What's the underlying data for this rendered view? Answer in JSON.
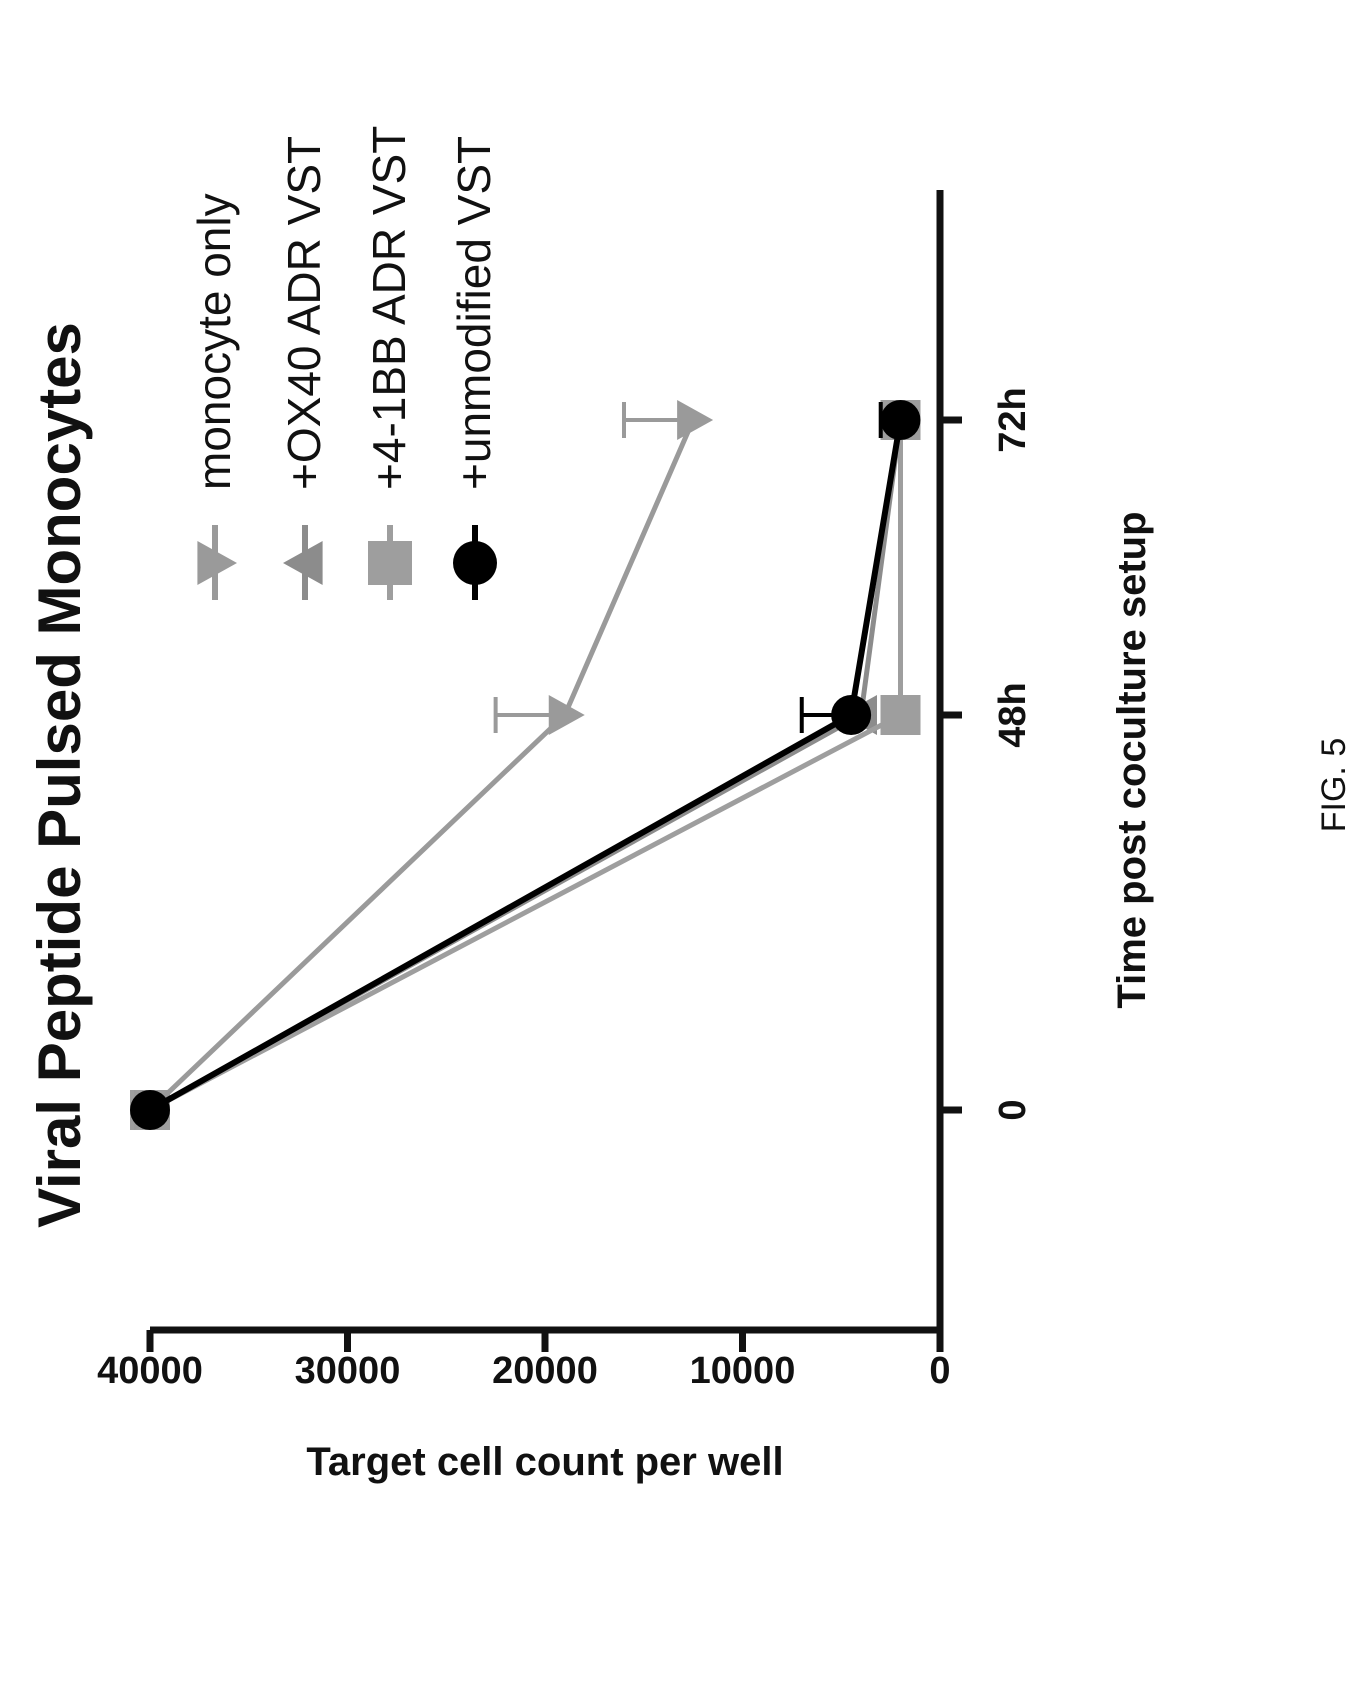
{
  "figure_caption": "FIG. 5",
  "chart_data": {
    "type": "line",
    "title": "Viral Peptide Pulsed Monocytes",
    "xlabel": "Time post coculture setup",
    "ylabel": "Target cell count per well",
    "categories": [
      "0",
      "48h",
      "72h"
    ],
    "ylim": [
      0,
      40000
    ],
    "yticks": [
      0,
      10000,
      20000,
      30000,
      40000
    ],
    "ytick_labels": [
      "0",
      "10000",
      "20000",
      "30000",
      "40000"
    ],
    "legend_position": "right",
    "series": [
      {
        "name": "monocyte only",
        "marker": "triangle-down",
        "color": "#9a9a9a",
        "values": [
          40000,
          19000,
          12500
        ],
        "errors": [
          0,
          3500,
          3500
        ]
      },
      {
        "name": "+OX40 ADR VST",
        "marker": "triangle-up",
        "color": "#8c8c8c",
        "values": [
          40000,
          4000,
          2000
        ],
        "errors": [
          0,
          0,
          500
        ]
      },
      {
        "name": "+4-1BB ADR VST",
        "marker": "square",
        "color": "#9e9e9e",
        "values": [
          40000,
          2000,
          2000
        ],
        "errors": [
          0,
          500,
          1000
        ]
      },
      {
        "name": "+unmodified VST",
        "marker": "circle",
        "color": "#000000",
        "values": [
          40000,
          4500,
          2000
        ],
        "errors": [
          0,
          2500,
          1000
        ]
      }
    ]
  }
}
